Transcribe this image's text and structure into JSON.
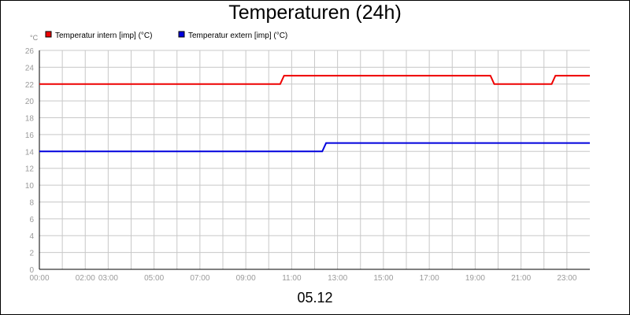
{
  "chart_data": {
    "type": "line",
    "title": "Temperaturen (24h)",
    "ylabel": "°C",
    "xlabel": "",
    "date_label": "05.12",
    "ylim": [
      0,
      26
    ],
    "yticks": [
      0,
      2,
      4,
      6,
      8,
      10,
      12,
      14,
      16,
      18,
      20,
      22,
      24,
      26
    ],
    "xlim": [
      "00:00",
      "24:00"
    ],
    "xtick_labels": [
      "00:00",
      "02:00",
      "03:00",
      "05:00",
      "07:00",
      "09:00",
      "11:00",
      "13:00",
      "15:00",
      "17:00",
      "19:00",
      "21:00",
      "23:00"
    ],
    "grid": true,
    "legend_position": "top-left",
    "series": [
      {
        "name": "Temperatur intern [imp] (°C)",
        "color": "#ee0000",
        "x": [
          "00:00",
          "10:30",
          "10:40",
          "19:40",
          "19:50",
          "22:20",
          "22:30",
          "24:00"
        ],
        "y": [
          22,
          22,
          23,
          23,
          22,
          22,
          23,
          23
        ]
      },
      {
        "name": "Temperatur extern [imp] (°C)",
        "color": "#0000dd",
        "x": [
          "00:00",
          "12:20",
          "12:30",
          "24:00"
        ],
        "y": [
          14,
          14,
          15,
          15
        ]
      }
    ]
  }
}
